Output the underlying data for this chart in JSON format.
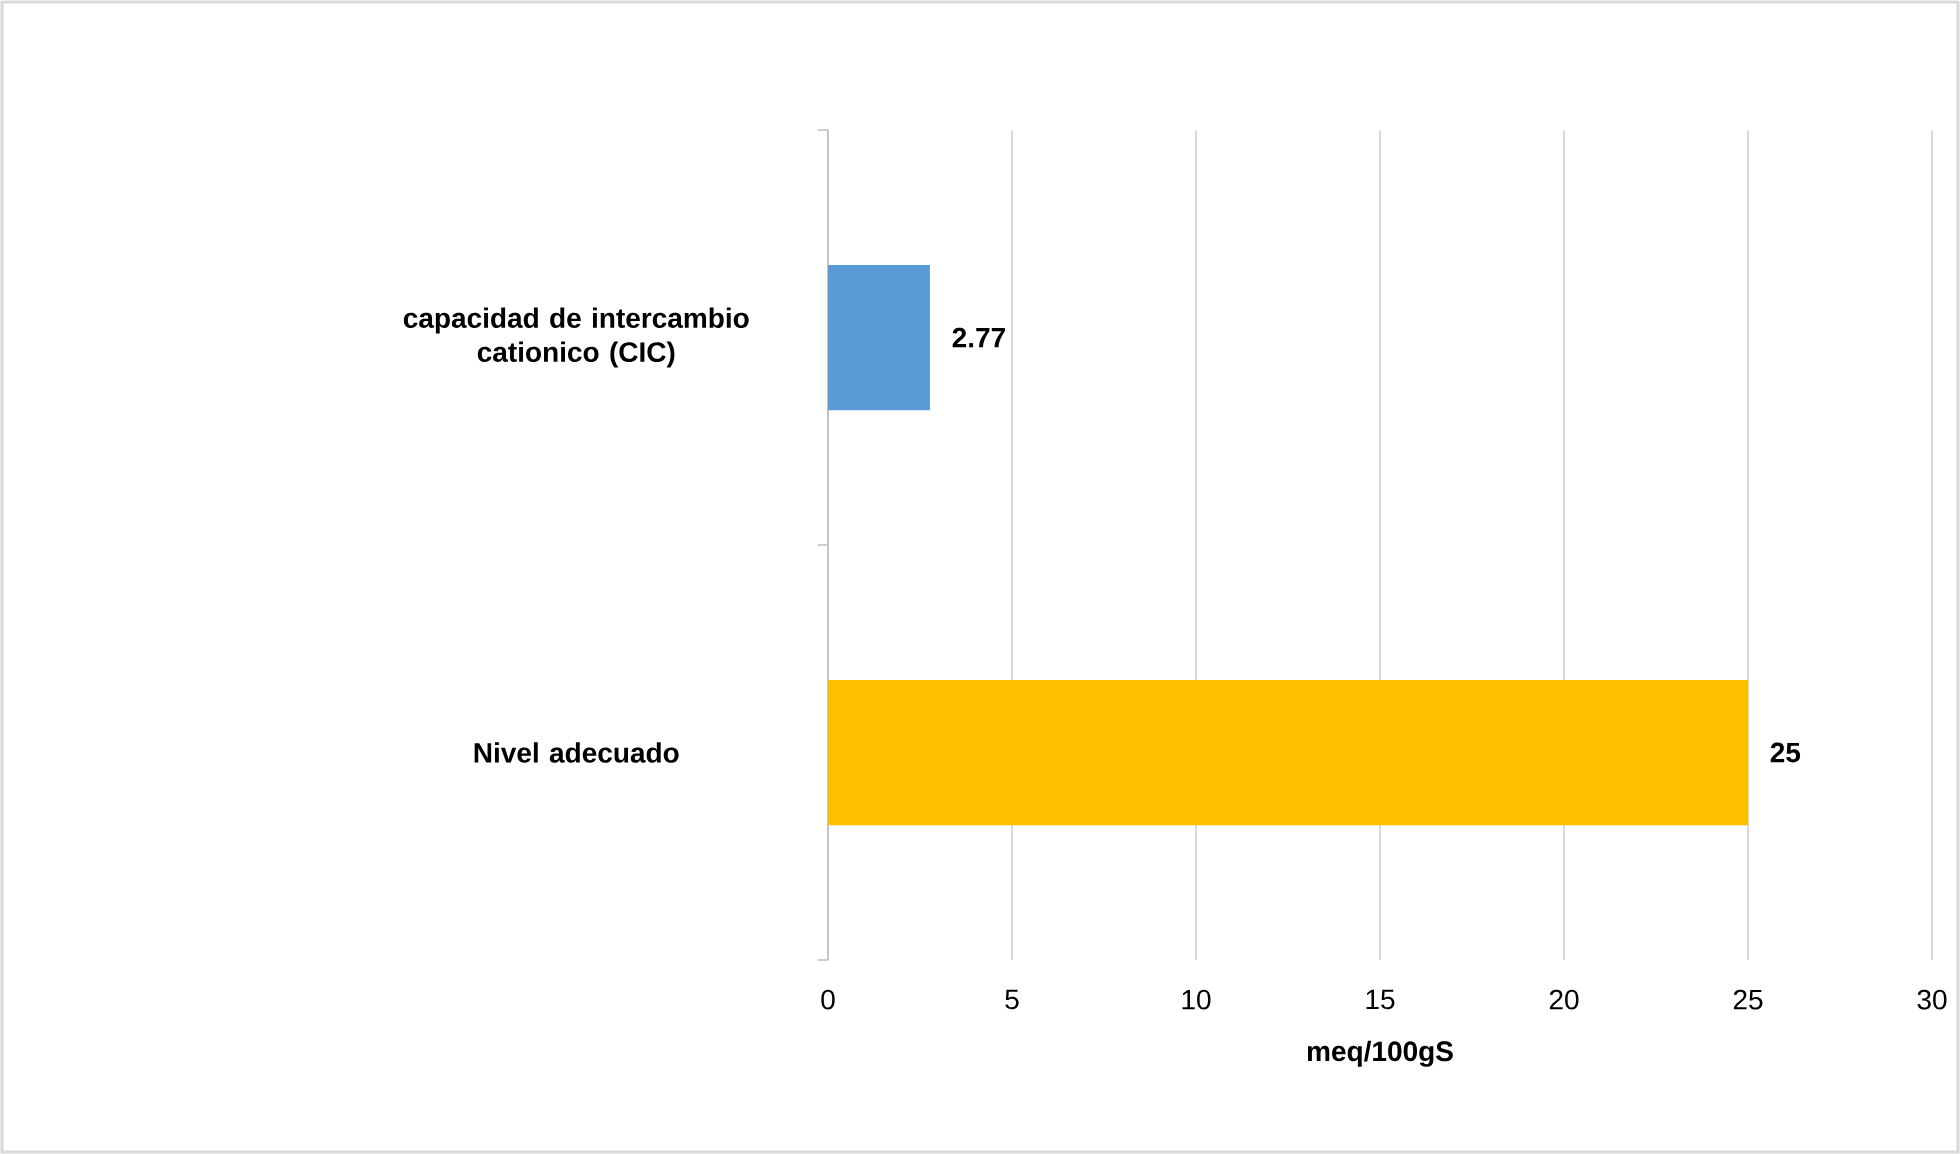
{
  "chart_data": {
    "type": "bar",
    "orientation": "horizontal",
    "categories": [
      "capacidad de intercambio cationico (CIC)",
      "Nivel adecuado"
    ],
    "values": [
      2.77,
      25
    ],
    "colors": [
      "#5b9bd5",
      "#ffc000"
    ],
    "xlabel": "meq/100gS",
    "xlim": [
      0,
      30
    ],
    "xticks": [
      0,
      5,
      10,
      15,
      20,
      25,
      30
    ],
    "grid": "x",
    "data_labels": true
  }
}
